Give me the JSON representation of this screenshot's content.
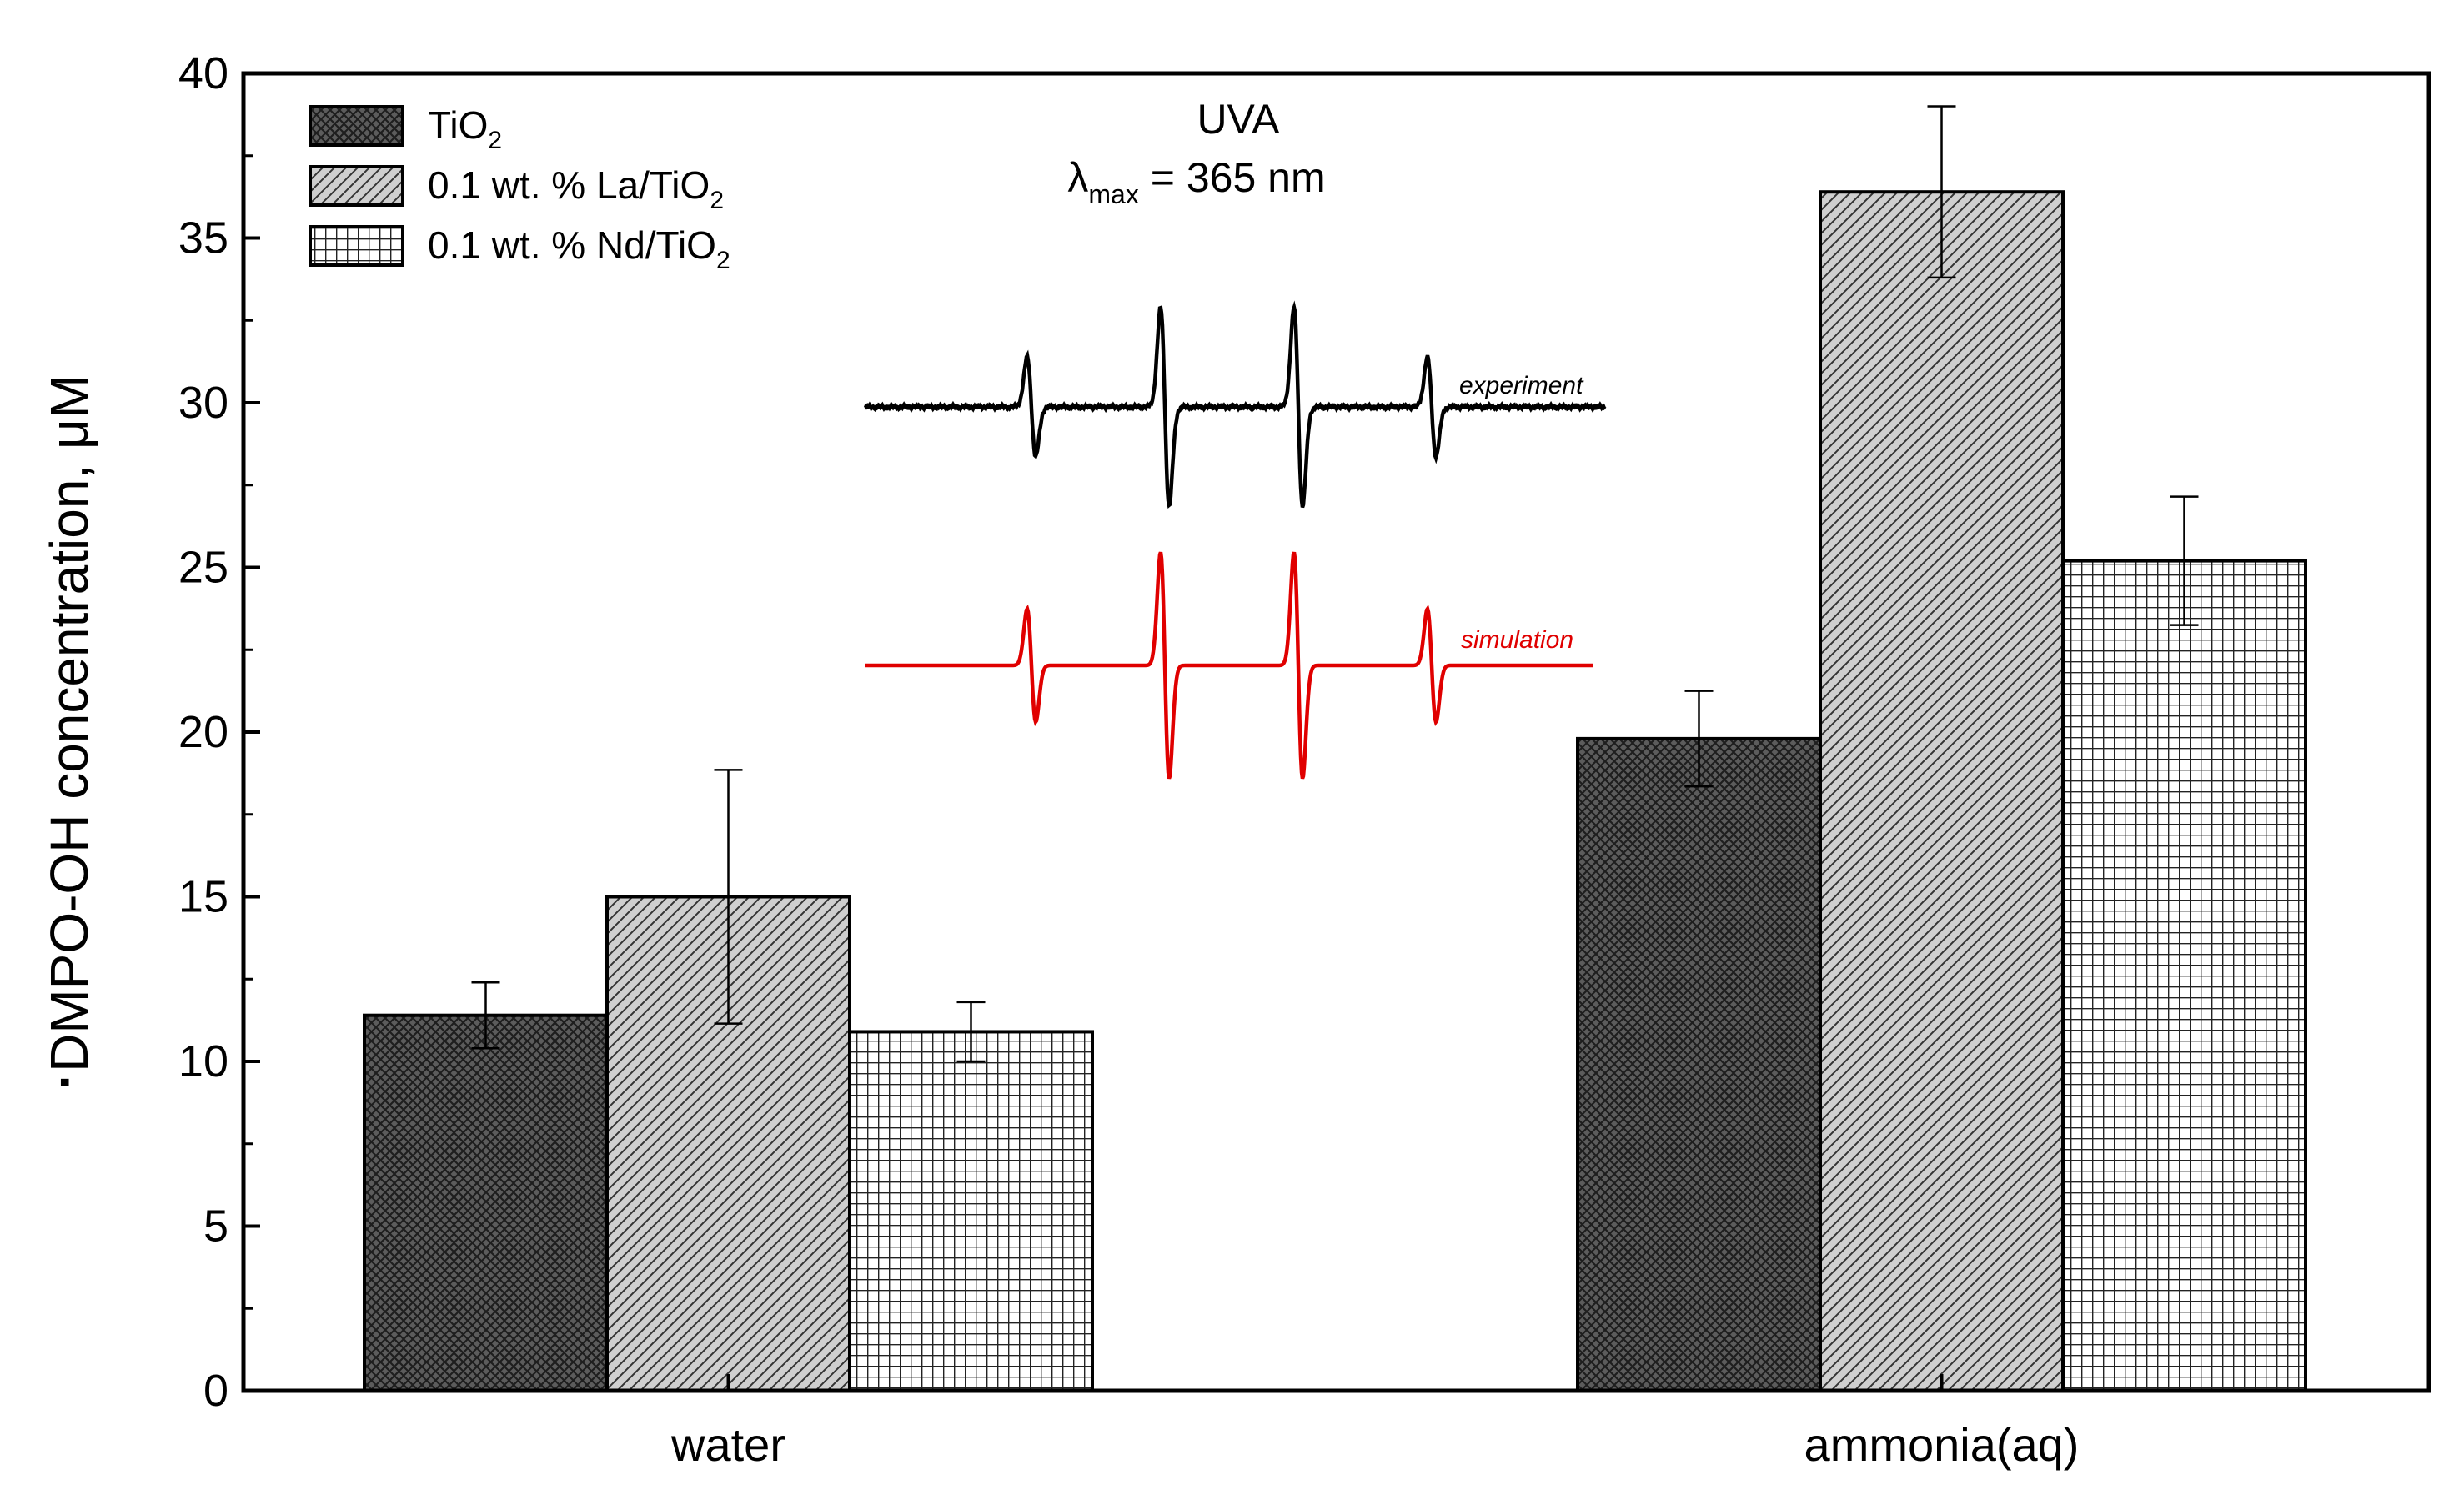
{
  "chart_data": {
    "type": "bar",
    "title": "",
    "xlabel": "",
    "ylabel": "DMPO-OH concentration, μM",
    "ylabel_mark": "·",
    "ylim": [
      0,
      40
    ],
    "yticks": [
      0,
      5,
      10,
      15,
      20,
      25,
      30,
      35,
      40
    ],
    "ytick_labels": [
      "0",
      "5",
      "10",
      "15",
      "20",
      "25",
      "30",
      "35",
      "40"
    ],
    "grid": false,
    "legend_position": "top-left",
    "categories": [
      "water",
      "ammonia(aq)"
    ],
    "series": [
      {
        "name": "TiO",
        "name_sub": "2",
        "name_tail": "",
        "pattern": "crosshatch-dark",
        "values": [
          11.4,
          19.8
        ],
        "error": [
          1.0,
          1.45
        ]
      },
      {
        "name": "0.1 wt. % La/TiO",
        "name_sub": "2",
        "name_tail": "",
        "pattern": "diagonal-gray",
        "values": [
          15.0,
          36.4
        ],
        "error": [
          3.85,
          2.6
        ]
      },
      {
        "name": "0.1 wt. % Nd/TiO",
        "name_sub": "2",
        "name_tail": "",
        "pattern": "grid-white",
        "values": [
          10.9,
          25.2
        ],
        "error": [
          0.9,
          1.95
        ]
      }
    ],
    "annotation": {
      "line1": "UVA",
      "line2_symbol": "λ",
      "line2_sub": "max",
      "line2_tail": " = 365 nm"
    },
    "inset": {
      "type": "line",
      "series": [
        {
          "name": "experiment",
          "color": "#000000"
        },
        {
          "name": "simulation",
          "color": "#e00000"
        }
      ]
    }
  }
}
